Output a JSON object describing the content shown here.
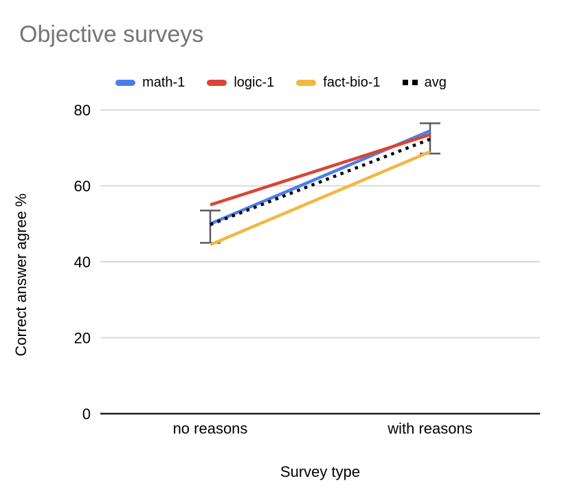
{
  "title": "Objective surveys",
  "chart_data": {
    "type": "line",
    "title": "Objective surveys",
    "xlabel": "Survey type",
    "ylabel": "Correct answer agree %",
    "categories": [
      "no reasons",
      "with reasons"
    ],
    "series": [
      {
        "name": "math-1",
        "color": "#4D7EE8",
        "style": "solid",
        "values": [
          50.0,
          74.5
        ]
      },
      {
        "name": "logic-1",
        "color": "#DB4437",
        "style": "solid",
        "values": [
          55.0,
          73.5
        ]
      },
      {
        "name": "fact-bio-1",
        "color": "#F3B73F",
        "style": "solid",
        "values": [
          44.5,
          69.0
        ]
      },
      {
        "name": "avg",
        "color": "#000000",
        "style": "dotted",
        "values": [
          49.8,
          72.3
        ]
      }
    ],
    "error_bars": {
      "series": "avg",
      "ranges": [
        [
          45.0,
          53.5
        ],
        [
          68.5,
          76.5
        ]
      ]
    },
    "ylim": [
      0,
      80
    ],
    "yticks": [
      0,
      20,
      40,
      60,
      80
    ],
    "grid": true,
    "legend_position": "top"
  },
  "colors": {
    "title_text": "#757575",
    "axis_text": "#000000",
    "gridline": "#D9D9D9",
    "axis_baseline": "#1F1F1F",
    "error_bar": "#58595B",
    "background": "#FFFFFF"
  }
}
